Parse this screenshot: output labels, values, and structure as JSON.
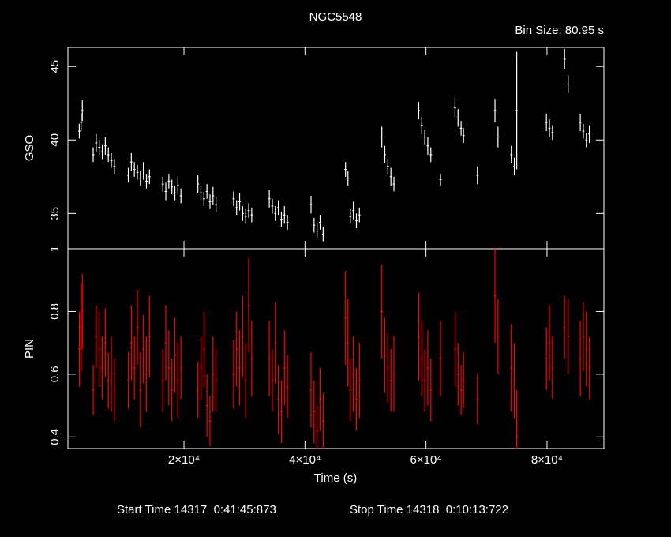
{
  "title": "NGC5548",
  "bin_size": "Bin Size: 80.95 s",
  "footer": {
    "start": "Start Time 14317  0:41:45:873",
    "stop": "Stop Time 14318  0:10:13:722"
  },
  "chart_data": {
    "type": "errorbar",
    "xlabel": "Time (s)",
    "xlim": [
      820,
      89400
    ],
    "xticks": [
      {
        "value": 20000,
        "label": "2×10⁴"
      },
      {
        "value": 40000,
        "label": "4×10⁴"
      },
      {
        "value": 60000,
        "label": "6×10⁴"
      },
      {
        "value": 80000,
        "label": "8×10⁴"
      }
    ],
    "x": [
      2700,
      3000,
      3200,
      5000,
      5500,
      6000,
      6500,
      7000,
      7500,
      8000,
      8500,
      10800,
      11300,
      11800,
      12300,
      12800,
      13300,
      13800,
      14300,
      16500,
      17000,
      17500,
      18000,
      18500,
      19000,
      19500,
      22300,
      22800,
      23300,
      23800,
      24300,
      24800,
      25300,
      28200,
      28700,
      29200,
      29700,
      30200,
      30700,
      31200,
      34100,
      34600,
      35100,
      35600,
      36100,
      36600,
      37100,
      41000,
      41500,
      42000,
      42500,
      43000,
      46700,
      47100,
      47500,
      48000,
      48500,
      49000,
      52700,
      53200,
      53700,
      54200,
      54700,
      58800,
      59300,
      59800,
      60300,
      60800,
      62400,
      64800,
      65300,
      65800,
      66200,
      68500,
      71400,
      71900,
      74100,
      74600,
      75000,
      79900,
      80400,
      80900,
      82900,
      83500,
      85500,
      86000,
      86500,
      87000
    ],
    "panels": [
      {
        "ylabel": "GSO",
        "color": "#ffffff",
        "ylim": [
          32.6,
          46.3
        ],
        "yticks": [
          35,
          40,
          45
        ],
        "values": [
          40.6,
          41.2,
          42.0,
          39.0,
          39.8,
          39.5,
          39.2,
          39.6,
          39.0,
          38.6,
          38.2,
          37.6,
          38.5,
          38.0,
          37.8,
          37.4,
          37.9,
          37.2,
          37.5,
          37.0,
          36.5,
          37.2,
          36.8,
          36.4,
          36.9,
          36.2,
          37.0,
          36.4,
          36.0,
          36.5,
          35.8,
          36.2,
          35.6,
          36.0,
          35.4,
          35.8,
          35.0,
          34.8,
          35.2,
          34.9,
          36.0,
          35.5,
          35.0,
          35.4,
          34.6,
          34.9,
          34.4,
          35.6,
          34.2,
          33.8,
          34.4,
          33.6,
          38.0,
          37.4,
          34.8,
          35.2,
          34.5,
          34.9,
          40.2,
          39.0,
          38.2,
          37.5,
          37.0,
          42.0,
          41.0,
          40.2,
          39.6,
          39.0,
          37.3,
          42.2,
          41.5,
          40.8,
          40.3,
          37.6,
          42.0,
          40.2,
          39.0,
          38.2,
          42.0,
          41.2,
          40.8,
          40.5,
          45.5,
          43.8,
          41.2,
          40.6,
          40.0,
          40.4
        ],
        "errors": [
          0.5,
          0.6,
          0.7,
          0.5,
          0.6,
          0.5,
          0.5,
          0.6,
          0.5,
          0.5,
          0.5,
          0.5,
          0.6,
          0.5,
          0.5,
          0.5,
          0.6,
          0.5,
          0.5,
          0.5,
          0.6,
          0.5,
          0.5,
          0.5,
          0.6,
          0.5,
          0.6,
          0.5,
          0.5,
          0.5,
          0.5,
          0.6,
          0.5,
          0.5,
          0.5,
          0.6,
          0.5,
          0.5,
          0.5,
          0.5,
          0.6,
          0.5,
          0.5,
          0.5,
          0.5,
          0.6,
          0.5,
          0.6,
          0.5,
          0.5,
          0.5,
          0.5,
          0.5,
          0.5,
          0.5,
          0.6,
          0.5,
          0.5,
          0.7,
          0.6,
          0.5,
          0.6,
          0.5,
          0.6,
          0.6,
          0.5,
          0.6,
          0.5,
          0.4,
          0.7,
          0.6,
          0.5,
          0.5,
          0.6,
          0.8,
          0.7,
          0.6,
          0.6,
          4.0,
          0.6,
          0.6,
          0.5,
          0.7,
          0.6,
          0.6,
          0.5,
          0.5,
          0.6
        ]
      },
      {
        "ylabel": "PIN",
        "color": "#ff0000",
        "ylim": [
          0.363,
          1.0
        ],
        "yticks": [
          0.4,
          0.6,
          0.8,
          1
        ],
        "values": [
          0.68,
          0.75,
          0.8,
          0.55,
          0.72,
          0.68,
          0.62,
          0.7,
          0.58,
          0.6,
          0.55,
          0.58,
          0.7,
          0.62,
          0.75,
          0.55,
          0.68,
          0.6,
          0.72,
          0.58,
          0.7,
          0.62,
          0.55,
          0.66,
          0.58,
          0.62,
          0.55,
          0.62,
          0.68,
          0.5,
          0.45,
          0.6,
          0.58,
          0.6,
          0.68,
          0.62,
          0.72,
          0.58,
          0.82,
          0.65,
          0.65,
          0.58,
          0.7,
          0.52,
          0.48,
          0.62,
          0.56,
          0.55,
          0.48,
          0.42,
          0.52,
          0.45,
          0.78,
          0.7,
          0.55,
          0.6,
          0.52,
          0.58,
          0.8,
          0.66,
          0.62,
          0.58,
          0.6,
          0.72,
          0.65,
          0.58,
          0.62,
          0.55,
          0.65,
          0.68,
          0.6,
          0.55,
          0.58,
          0.52,
          0.85,
          0.72,
          0.62,
          0.58,
          0.4,
          0.65,
          0.7,
          0.62,
          0.75,
          0.72,
          0.65,
          0.72,
          0.68,
          0.62
        ],
        "errors": [
          0.12,
          0.14,
          0.12,
          0.08,
          0.1,
          0.12,
          0.1,
          0.11,
          0.09,
          0.12,
          0.1,
          0.09,
          0.12,
          0.1,
          0.12,
          0.12,
          0.11,
          0.12,
          0.13,
          0.1,
          0.12,
          0.12,
          0.1,
          0.12,
          0.12,
          0.1,
          0.09,
          0.1,
          0.12,
          0.1,
          0.08,
          0.12,
          0.1,
          0.11,
          0.12,
          0.12,
          0.13,
          0.12,
          0.15,
          0.12,
          0.12,
          0.1,
          0.13,
          0.11,
          0.1,
          0.12,
          0.1,
          0.12,
          0.1,
          0.08,
          0.1,
          0.09,
          0.15,
          0.14,
          0.1,
          0.12,
          0.1,
          0.12,
          0.15,
          0.12,
          0.11,
          0.1,
          0.12,
          0.14,
          0.12,
          0.1,
          0.12,
          0.1,
          0.12,
          0.12,
          0.1,
          0.08,
          0.09,
          0.08,
          0.15,
          0.12,
          0.14,
          0.12,
          0.15,
          0.1,
          0.12,
          0.1,
          0.1,
          0.12,
          0.12,
          0.11,
          0.12,
          0.1
        ]
      }
    ]
  }
}
